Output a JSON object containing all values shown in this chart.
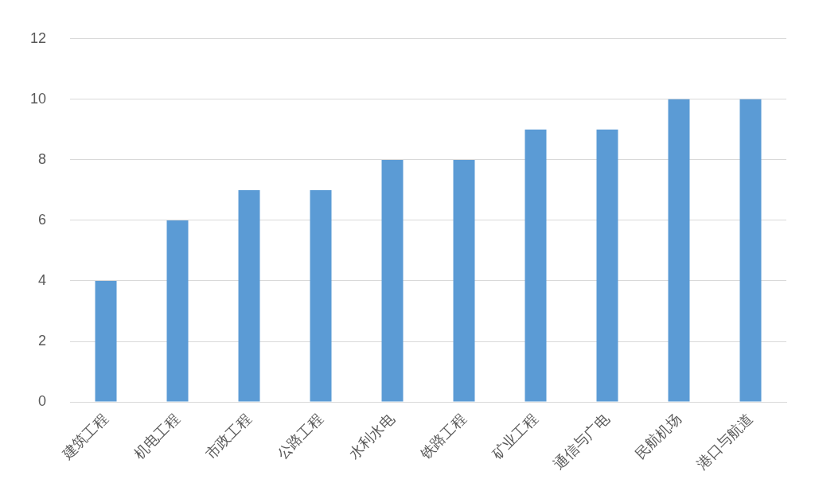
{
  "chart_data": {
    "type": "bar",
    "categories": [
      "建筑工程",
      "机电工程",
      "市政工程",
      "公路工程",
      "水利水电",
      "铁路工程",
      "矿业工程",
      "通信与广电",
      "民航机场",
      "港口与航道"
    ],
    "values": [
      4,
      6,
      7,
      7,
      8,
      8,
      9,
      9,
      10,
      10
    ],
    "color": "#5b9bd5",
    "ylim": [
      0,
      12
    ],
    "yticks": [
      0,
      2,
      4,
      6,
      8,
      10,
      12
    ],
    "grid": "y",
    "legend": false
  }
}
